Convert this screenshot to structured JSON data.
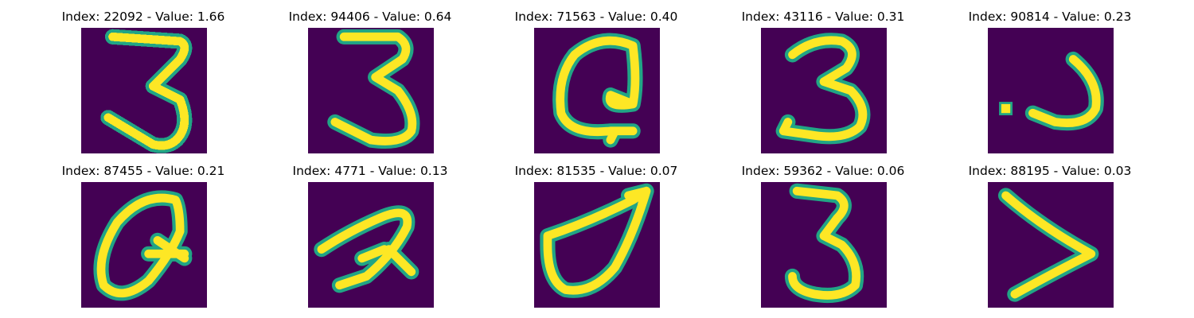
{
  "panels": [
    {
      "title": "Index: 22092 - Value: 1.66",
      "glyph": "three-a"
    },
    {
      "title": "Index: 94406 - Value: 0.64",
      "glyph": "three-b"
    },
    {
      "title": "Index: 71563 - Value: 0.40",
      "glyph": "loop-q"
    },
    {
      "title": "Index: 43116 - Value: 0.31",
      "glyph": "three-c"
    },
    {
      "title": "Index: 90814 - Value: 0.23",
      "glyph": "dot-j"
    },
    {
      "title": "Index: 87455 - Value: 0.21",
      "glyph": "loop-q2"
    },
    {
      "title": "Index: 4771 - Value: 0.13",
      "glyph": "script-a"
    },
    {
      "title": "Index: 81535 - Value: 0.07",
      "glyph": "leaf"
    },
    {
      "title": "Index: 59362 - Value: 0.06",
      "glyph": "three-d"
    },
    {
      "title": "Index: 88195 - Value: 0.03",
      "glyph": "greater-than"
    }
  ],
  "colors": {
    "background": "#440154",
    "edge": "#21a585",
    "stroke": "#fde725"
  }
}
